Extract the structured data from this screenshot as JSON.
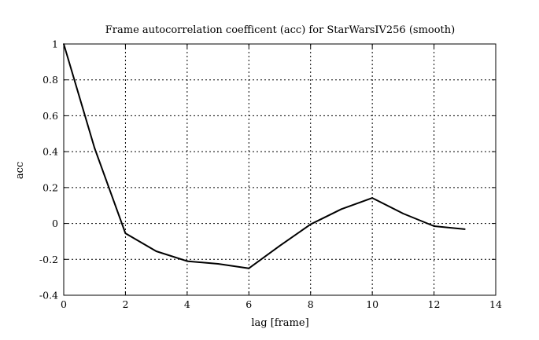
{
  "chart_data": {
    "type": "line",
    "title": "Frame autocorrelation coefficent (acc) for StarWarsIV256 (smooth)",
    "xlabel": "lag [frame]",
    "ylabel": "acc",
    "xlim": [
      0,
      14
    ],
    "ylim": [
      -0.4,
      1
    ],
    "xticks": [
      0,
      2,
      4,
      6,
      8,
      10,
      12,
      14
    ],
    "yticks": [
      -0.4,
      -0.2,
      0,
      0.2,
      0.4,
      0.6,
      0.8,
      1
    ],
    "xtick_labels": [
      "0",
      "2",
      "4",
      "6",
      "8",
      "10",
      "12",
      "14"
    ],
    "ytick_labels": [
      "-0.4",
      "-0.2",
      "0",
      "0.2",
      "0.4",
      "0.6",
      "0.8",
      "1"
    ],
    "grid": true,
    "series": [
      {
        "x": [
          0,
          1,
          2,
          3,
          4,
          5,
          6,
          7,
          8,
          9,
          10,
          11,
          12,
          13
        ],
        "values": [
          1.0,
          0.42,
          -0.055,
          -0.155,
          -0.21,
          -0.225,
          -0.25,
          -0.125,
          -0.005,
          0.08,
          0.142,
          0.055,
          -0.015,
          -0.032
        ]
      }
    ]
  }
}
